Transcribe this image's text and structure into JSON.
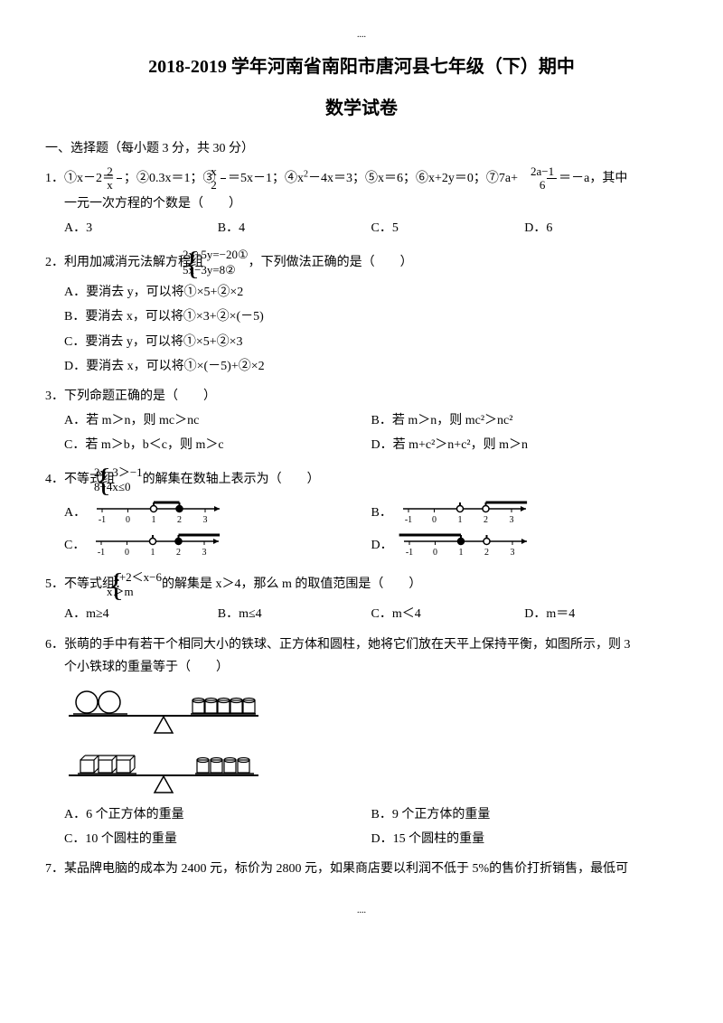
{
  "header_dots": "....",
  "title_line1": "2018-2019 学年河南省南阳市唐河县七年级（下）期中",
  "title_line2": "数学试卷",
  "section1": "一、选择题（每小题 3 分，共 30 分）",
  "q1": {
    "pre": "1．①x－2＝",
    "frac1_num": "2",
    "frac1_den": "x",
    "mid1": "；②0.3x＝1；③ ",
    "frac2_num": "x",
    "frac2_den": "2",
    "mid2": "＝5x－1；④x",
    "sq": "2",
    "mid3": "－4x＝3；⑤x＝6；⑥x+2y＝0；⑦7a+",
    "frac3_num": "2a−1",
    "frac3_den": "6",
    "tail": "＝－a，其中",
    "line2": "一元一次方程的个数是（　　）",
    "A": "A．3",
    "B": "B．4",
    "C": "C．5",
    "D": "D．6"
  },
  "q2": {
    "pre": "2．利用加减消元法解方程组",
    "sys1": "2x+5y=−20①",
    "sys2": "5x−3y=8②",
    "tail": "，下列做法正确的是（　　）",
    "A": "A．要消去 y，可以将①×5+②×2",
    "B": "B．要消去 x，可以将①×3+②×(－5)",
    "C": "C．要消去 y，可以将①×5+②×3",
    "D": "D．要消去 x，可以将①×(－5)+②×2"
  },
  "q3": {
    "stem": "3．下列命题正确的是（　　）",
    "A": "A．若 m＞n，则 mc＞nc",
    "B": "B．若 m＞n，则 mc²＞nc²",
    "C": "C．若 m＞b，b＜c，则 m＞c",
    "D": "D．若 m+c²＞n+c²，则 m＞n"
  },
  "q4": {
    "pre": "4．不等式组",
    "sys1": "2x−3＞−1",
    "sys2": "8−4x≤0",
    "tail": "的解集在数轴上表示为（　　）",
    "A": "A．",
    "B": "B．",
    "C": "C．",
    "D": "D．",
    "lines": {
      "A": {
        "p1": {
          "x": 1,
          "open": true
        },
        "p2": {
          "x": 2,
          "open": false
        },
        "bar_from": 1,
        "bar_to": 2,
        "bar_right": false
      },
      "B": {
        "p1": {
          "x": 1,
          "open": true
        },
        "p2": {
          "x": 2,
          "open": true
        },
        "bar_from": 2,
        "bar_to": 3.6,
        "bar_right": true
      },
      "C": {
        "p1": {
          "x": 1,
          "open": true
        },
        "p2": {
          "x": 2,
          "open": false
        },
        "bar_from": 2,
        "bar_to": 3.6,
        "bar_right": true
      },
      "D": {
        "p1": {
          "x": 1,
          "open": false
        },
        "p2": {
          "x": 2,
          "open": true
        },
        "bar_from": -1.4,
        "bar_to": 1,
        "bar_right": false
      }
    },
    "ticks": [
      "-1",
      "0",
      "1",
      "2",
      "3"
    ]
  },
  "q5": {
    "pre": "5．不等式组：",
    "sys1": "−x+2＜x−6",
    "sys2": "x＞m",
    "tail": "的解集是 x＞4，那么 m 的取值范围是（　　）",
    "A": "A．m≥4",
    "B": "B．m≤4",
    "C": "C．m＜4",
    "D": "D．m＝4"
  },
  "q6": {
    "stem": "6．张萌的手中有若干个相同大小的铁球、正方体和圆柱，她将它们放在天平上保持平衡，如图所示，则 3",
    "stem2": "个小铁球的重量等于（　　）",
    "A": "A．6 个正方体的重量",
    "B": "B．9 个正方体的重量",
    "C": "C．10 个圆柱的重量",
    "D": "D．15 个圆柱的重量"
  },
  "q7": {
    "stem": "7．某品牌电脑的成本为 2400 元，标价为 2800 元，如果商店要以利润不低于 5%的售价打折销售，最低可"
  },
  "footer_dots": "...."
}
